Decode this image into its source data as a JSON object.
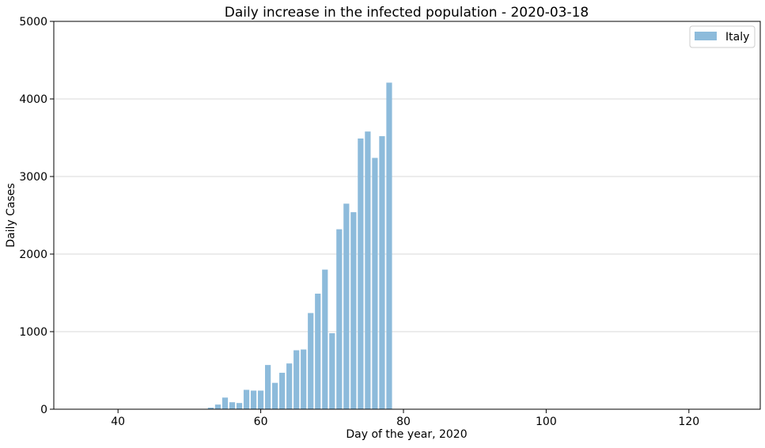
{
  "chart_data": {
    "type": "bar",
    "title": "Daily increase in the infected population - 2020-03-18",
    "xlabel": "Day of the year, 2020",
    "ylabel": "Daily Cases",
    "xlim": [
      31,
      130
    ],
    "ylim": [
      0,
      5000
    ],
    "x_ticks": [
      40,
      60,
      80,
      100,
      120
    ],
    "y_ticks": [
      0,
      1000,
      2000,
      3000,
      4000,
      5000
    ],
    "grid": "horizontal",
    "legend_position": "top-right",
    "bar_color": "#8dbbdb",
    "series": [
      {
        "name": "Italy",
        "x": [
          53,
          54,
          55,
          56,
          57,
          58,
          59,
          60,
          61,
          62,
          63,
          64,
          65,
          66,
          67,
          68,
          69,
          70,
          71,
          72,
          73,
          74,
          75,
          76,
          77,
          78
        ],
        "values": [
          20,
          60,
          150,
          90,
          80,
          250,
          240,
          240,
          570,
          340,
          470,
          590,
          760,
          770,
          1240,
          1490,
          1800,
          980,
          2320,
          2650,
          2540,
          3490,
          3580,
          3240,
          3520,
          4210
        ]
      }
    ]
  }
}
